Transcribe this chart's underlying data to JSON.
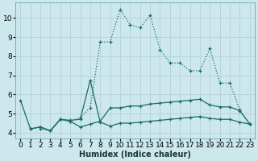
{
  "xlabel": "Humidex (Indice chaleur)",
  "bg_color": "#cce8ec",
  "grid_color": "#b8d4d8",
  "line_color": "#1a6b6b",
  "xlim": [
    -0.5,
    23.5
  ],
  "ylim": [
    3.7,
    10.8
  ],
  "xticks": [
    0,
    1,
    2,
    3,
    4,
    5,
    6,
    7,
    8,
    9,
    10,
    11,
    12,
    13,
    14,
    15,
    16,
    17,
    18,
    19,
    20,
    21,
    22,
    23
  ],
  "yticks": [
    4,
    5,
    6,
    7,
    8,
    9,
    10
  ],
  "line_dotted_x": [
    2,
    3,
    4,
    5,
    6,
    7,
    8,
    9,
    10,
    11,
    12,
    13,
    14,
    15,
    16,
    17,
    18,
    19,
    20,
    21,
    22,
    23
  ],
  "line_dotted_y": [
    4.2,
    4.1,
    4.7,
    4.6,
    4.8,
    5.3,
    8.75,
    8.75,
    10.45,
    9.65,
    9.5,
    10.15,
    8.35,
    7.65,
    7.65,
    7.25,
    7.25,
    8.4,
    6.6,
    6.6,
    5.2,
    4.45
  ],
  "line_spike_x": [
    0,
    1,
    2,
    3,
    4,
    5,
    6,
    7,
    8,
    9,
    10,
    11,
    12,
    13,
    14,
    15,
    16,
    17,
    18,
    19,
    20,
    21,
    22,
    23
  ],
  "line_spike_y": [
    5.7,
    4.2,
    4.3,
    4.1,
    4.7,
    4.65,
    4.7,
    6.75,
    4.55,
    4.35,
    4.5,
    4.5,
    4.55,
    4.6,
    4.65,
    4.7,
    4.75,
    4.8,
    4.85,
    4.75,
    4.7,
    4.7,
    4.55,
    4.45
  ],
  "line_flat_x": [
    1,
    2,
    3,
    4,
    5,
    6,
    7,
    8,
    9,
    10,
    11,
    12,
    13,
    14,
    15,
    16,
    17,
    18,
    19,
    20,
    21,
    22,
    23
  ],
  "line_flat_y": [
    4.2,
    4.3,
    4.1,
    4.7,
    4.6,
    4.3,
    4.45,
    4.6,
    5.3,
    5.3,
    5.4,
    5.4,
    5.5,
    5.55,
    5.6,
    5.65,
    5.7,
    5.75,
    5.45,
    5.35,
    5.35,
    5.15,
    4.45
  ],
  "axis_fontsize": 7,
  "tick_fontsize": 6.5
}
